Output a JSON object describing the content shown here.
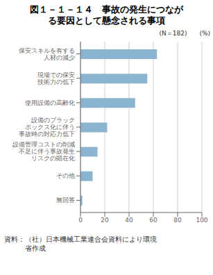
{
  "chart_data": {
    "type": "bar",
    "orientation": "horizontal",
    "title": "図１－１－１４　事故の発生につなが\nる要因として懸念される事項",
    "categories": [
      "保安スキルを有する\n人材の減少",
      "現場での保安\n技術力の低下",
      "使用設備の高齢化",
      "設備のブラック\nボックス化に伴う\n事故時の対応力低下",
      "設備管理コストの削減\n不足に伴う事故発生\nリスクの顕在化",
      "その他",
      "無回答"
    ],
    "values": [
      63,
      55,
      45,
      22,
      14,
      10,
      1.5
    ],
    "color": "#8ab4d0",
    "xlabel": "(%)",
    "xlim": [
      0,
      100
    ],
    "xticks": [
      0,
      20,
      40,
      60,
      80,
      100
    ],
    "grid": true,
    "annotations": [
      "(N＝182)",
      "資料：（社）日本機械工業連合会資料により環境\n　　　省作成"
    ]
  }
}
